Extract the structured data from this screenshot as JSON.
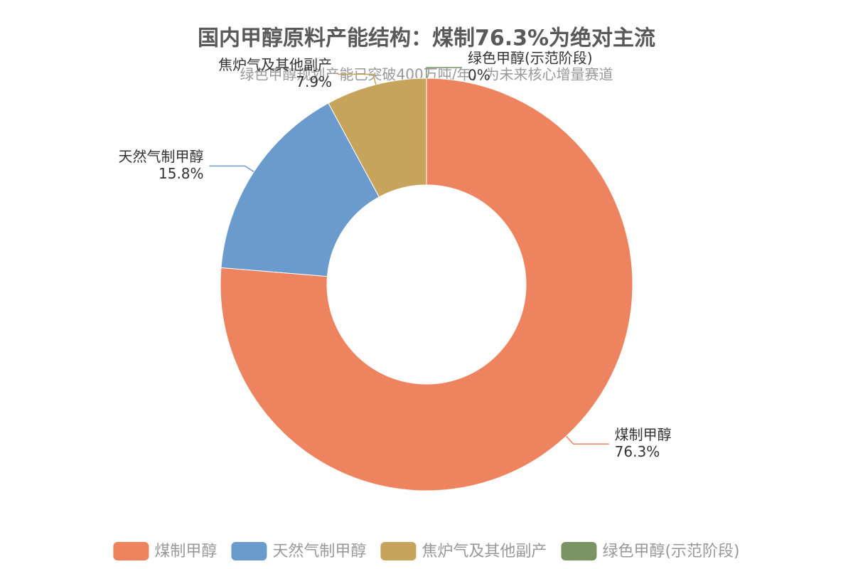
{
  "chart_data": {
    "type": "donut",
    "title": "国内甲醇原料产能结构：煤制76.3%为绝对主流",
    "subtitle": "绿色甲醇规划产能已突破400万吨/年，为未来核心增量赛道",
    "categories": [
      "煤制甲醇",
      "天然气制甲醇",
      "焦炉气及其他副产",
      "绿色甲醇(示范阶段)"
    ],
    "values": [
      76.3,
      15.8,
      7.9,
      0
    ],
    "value_labels": [
      "76.3%",
      "15.8%",
      "7.9%",
      "0%"
    ],
    "colors": [
      "#ee8360",
      "#6a9bcc",
      "#c6a45c",
      "#7a9463"
    ],
    "legend": "bottom"
  }
}
